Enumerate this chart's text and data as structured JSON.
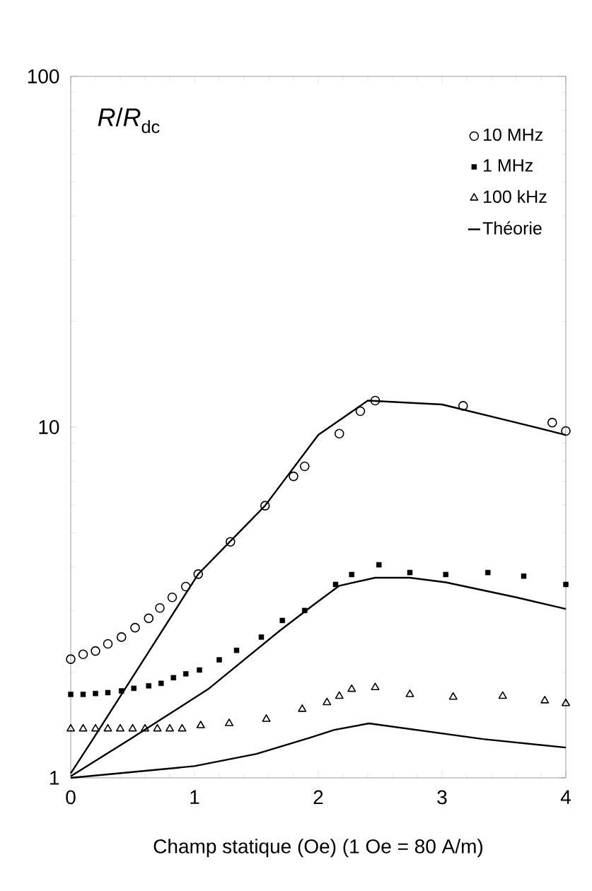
{
  "chart_data": {
    "type": "scatter",
    "xlabel": "Champ statique (Oe)  (1 Oe = 80 A/m)",
    "ylabel": "*R*/*R*$_{dc}$",
    "log": "y",
    "legend": "top right",
    "xlim": [
      0,
      4
    ],
    "ylim": [
      1,
      100
    ],
    "xticks": [
      0,
      1,
      2,
      3,
      4
    ],
    "yticks": [
      1,
      10,
      100
    ],
    "series": [
      {
        "name": "10 MHz",
        "marker": "circle",
        "color": "#000000",
        "x": [
          0,
          0.1,
          0.2,
          0.3,
          0.41,
          0.52,
          0.63,
          0.72,
          0.82,
          0.93,
          1.03,
          1.29,
          1.57,
          1.8,
          1.89,
          2.17,
          2.34,
          2.46,
          3.17,
          3.89,
          4.0
        ],
        "values": [
          2.18,
          2.25,
          2.3,
          2.41,
          2.52,
          2.68,
          2.85,
          3.05,
          3.27,
          3.51,
          3.81,
          4.71,
          5.97,
          7.24,
          7.73,
          9.58,
          11.1,
          11.9,
          11.5,
          10.3,
          9.75
        ]
      },
      {
        "name": "1 MHz",
        "marker": "square",
        "color": "#000000",
        "x": [
          0,
          0.1,
          0.2,
          0.3,
          0.41,
          0.51,
          0.63,
          0.73,
          0.83,
          0.93,
          1.04,
          1.2,
          1.34,
          1.54,
          1.71,
          1.89,
          2.14,
          2.27,
          2.49,
          2.74,
          3.03,
          3.37,
          3.66,
          4.0
        ],
        "values": [
          1.73,
          1.73,
          1.74,
          1.75,
          1.77,
          1.8,
          1.83,
          1.86,
          1.93,
          1.98,
          2.03,
          2.17,
          2.31,
          2.52,
          2.81,
          3.0,
          3.56,
          3.8,
          4.05,
          3.85,
          3.8,
          3.85,
          3.76,
          3.56
        ]
      },
      {
        "name": "100 kHz",
        "marker": "triangle",
        "color": "#000000",
        "x": [
          0,
          0.1,
          0.2,
          0.3,
          0.4,
          0.5,
          0.6,
          0.7,
          0.8,
          0.9,
          1.05,
          1.28,
          1.58,
          1.87,
          2.07,
          2.17,
          2.27,
          2.46,
          2.74,
          3.09,
          3.49,
          3.83,
          4.0
        ],
        "values": [
          1.38,
          1.38,
          1.38,
          1.38,
          1.38,
          1.38,
          1.38,
          1.38,
          1.38,
          1.38,
          1.41,
          1.43,
          1.47,
          1.57,
          1.64,
          1.71,
          1.79,
          1.81,
          1.73,
          1.7,
          1.71,
          1.66,
          1.63
        ]
      },
      {
        "name": "Théorie",
        "type": "line",
        "marker": "none",
        "color": "#000000",
        "x": [
          0,
          0.18,
          1.03,
          1.57,
          2.0,
          2.4,
          3.0,
          3.6,
          4.0
        ],
        "values": [
          1.03,
          1.29,
          3.81,
          5.97,
          9.5,
          11.9,
          11.6,
          10.3,
          9.5
        ]
      },
      {
        "type": "line",
        "marker": "none",
        "color": "#000000",
        "x": [
          0,
          0.48,
          1.11,
          1.4,
          1.69,
          1.97,
          2.17,
          2.46,
          2.74,
          3.03,
          3.6,
          4.0
        ],
        "values": [
          1.01,
          1.29,
          1.79,
          2.17,
          2.63,
          3.13,
          3.53,
          3.72,
          3.72,
          3.61,
          3.27,
          3.03
        ]
      },
      {
        "type": "line",
        "marker": "none",
        "color": "#000000",
        "x": [
          0,
          1.0,
          1.5,
          1.93,
          2.13,
          2.41,
          3.33,
          4.0
        ],
        "values": [
          1.0,
          1.08,
          1.17,
          1.3,
          1.37,
          1.43,
          1.29,
          1.22
        ]
      }
    ]
  }
}
